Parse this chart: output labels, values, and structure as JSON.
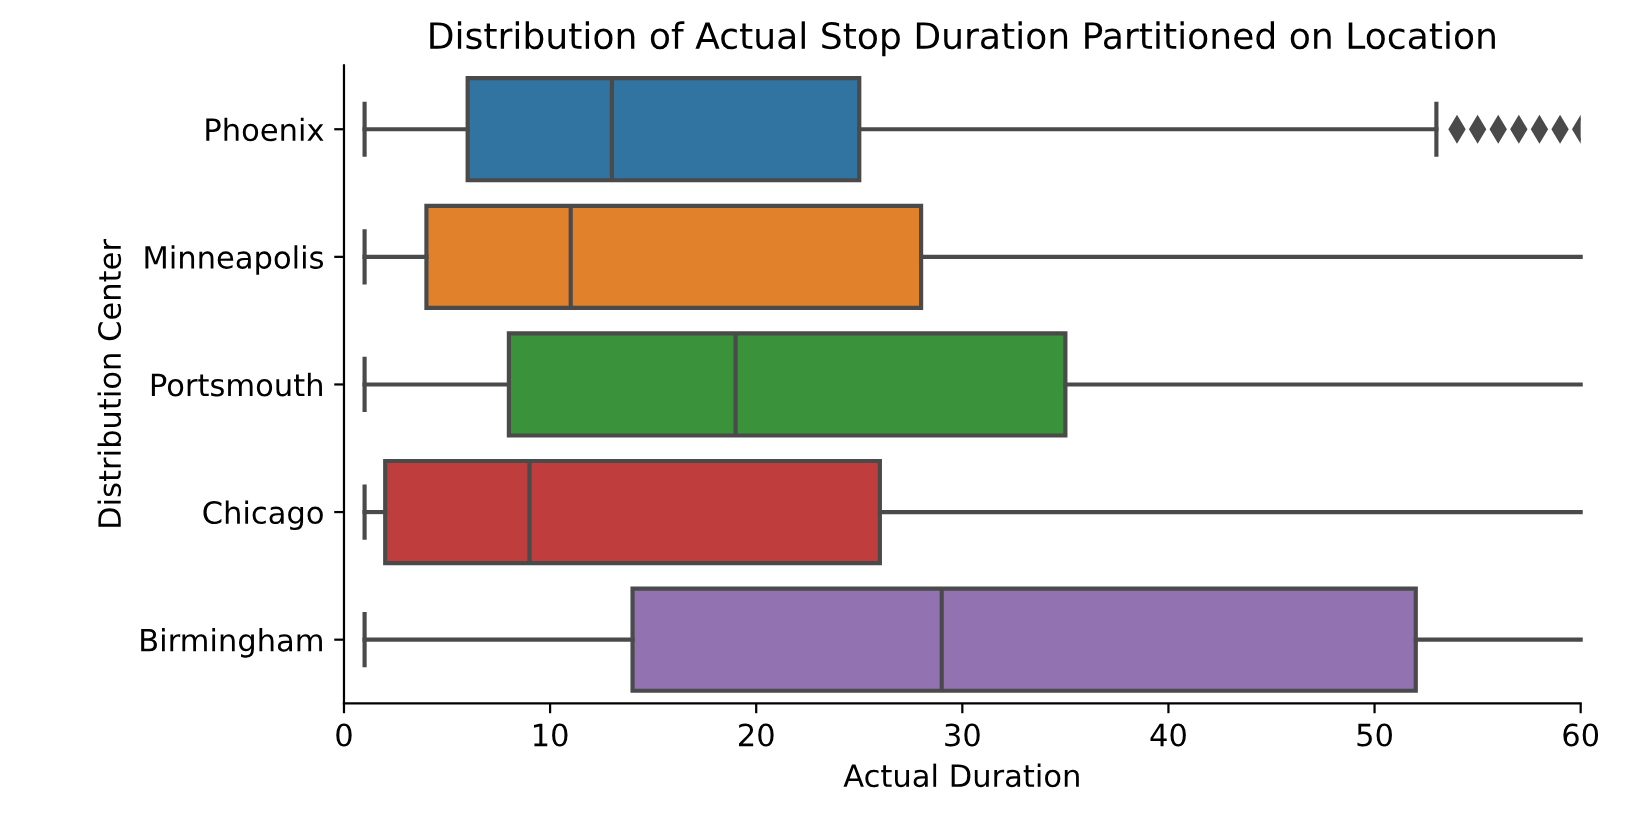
{
  "chart_data": {
    "type": "box",
    "orientation": "horizontal",
    "title": "Distribution of Actual Stop Duration Partitioned on Location",
    "xlabel": "Actual Duration",
    "ylabel": "Distribution Center",
    "categories": [
      "Phoenix",
      "Minneapolis",
      "Portsmouth",
      "Chicago",
      "Birmingham"
    ],
    "colors": [
      "#3274a1",
      "#e1812c",
      "#3a923a",
      "#c03d3e",
      "#9372b2"
    ],
    "boxes": [
      {
        "low": 1,
        "q1": 6,
        "median": 13,
        "q3": 25,
        "high": 53,
        "outliers": [
          54,
          55,
          56,
          57,
          58,
          59,
          60
        ]
      },
      {
        "low": 1,
        "q1": 4,
        "median": 11,
        "q3": 28,
        "high": 60
      },
      {
        "low": 1,
        "q1": 8,
        "median": 19,
        "q3": 35,
        "high": 60
      },
      {
        "low": 1,
        "q1": 2,
        "median": 9,
        "q3": 26,
        "high": 60
      },
      {
        "low": 1,
        "q1": 14,
        "median": 29,
        "q3": 52,
        "high": 60
      }
    ],
    "xlim": [
      0,
      60
    ],
    "xticks": [
      0,
      10,
      20,
      30,
      40,
      50,
      60
    ],
    "grid": false
  }
}
